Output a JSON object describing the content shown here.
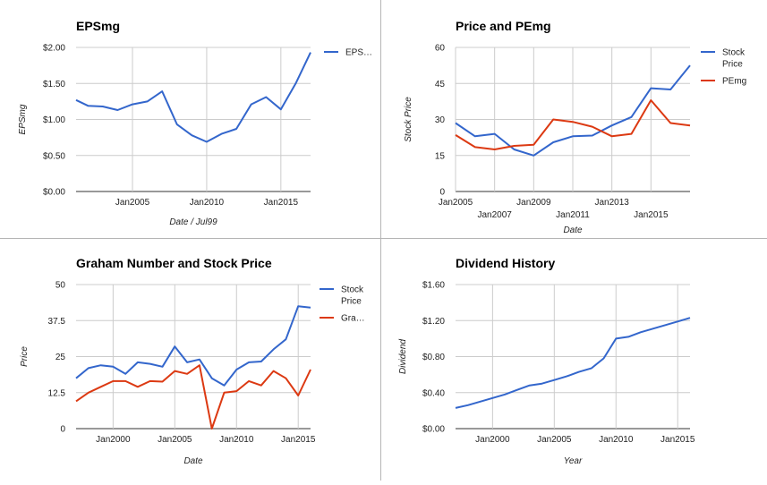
{
  "colors": {
    "blue": "#3366cc",
    "red": "#dc3912",
    "grid": "#cccccc",
    "axis": "#333333",
    "divider": "#b5b5b5"
  },
  "chart_data": [
    {
      "id": "eps",
      "type": "line",
      "title": "EPSmg",
      "xlabel": "Date / Jul99",
      "ylabel": "EPSmg",
      "ylim": [
        0,
        2.0
      ],
      "xlim": [
        2001.2,
        2017.0
      ],
      "grid": true,
      "legend_position": "right",
      "y_ticks": [
        {
          "v": 0,
          "label": "$0.00"
        },
        {
          "v": 0.5,
          "label": "$0.50"
        },
        {
          "v": 1.0,
          "label": "$1.00"
        },
        {
          "v": 1.5,
          "label": "$1.50"
        },
        {
          "v": 2.0,
          "label": "$2.00"
        }
      ],
      "x_ticks": [
        {
          "v": 2005,
          "label": "Jan2005",
          "row": 0
        },
        {
          "v": 2010,
          "label": "Jan2010",
          "row": 0
        },
        {
          "v": 2015,
          "label": "Jan2015",
          "row": 0
        }
      ],
      "series": [
        {
          "name": "EPS…",
          "color": "#3366cc",
          "x": [
            2001.2,
            2002.0,
            2003.0,
            2004.0,
            2005.0,
            2006.0,
            2007.0,
            2008.0,
            2009.0,
            2010.0,
            2011.0,
            2012.0,
            2013.0,
            2014.0,
            2015.0,
            2016.0,
            2017.0
          ],
          "values": [
            1.27,
            1.19,
            1.18,
            1.13,
            1.21,
            1.25,
            1.39,
            0.93,
            0.78,
            0.69,
            0.8,
            0.87,
            1.21,
            1.31,
            1.14,
            1.5,
            1.93
          ]
        }
      ]
    },
    {
      "id": "pe",
      "type": "line",
      "title": "Price and PEmg",
      "xlabel": "Date",
      "ylabel": "Stock Price",
      "ylim": [
        0,
        60
      ],
      "xlim": [
        2005.0,
        2017.0
      ],
      "grid": true,
      "legend_position": "right",
      "y_ticks": [
        {
          "v": 0,
          "label": "0"
        },
        {
          "v": 15,
          "label": "15"
        },
        {
          "v": 30,
          "label": "30"
        },
        {
          "v": 45,
          "label": "45"
        },
        {
          "v": 60,
          "label": "60"
        }
      ],
      "x_ticks": [
        {
          "v": 2005,
          "label": "Jan2005",
          "row": 0
        },
        {
          "v": 2007,
          "label": "Jan2007",
          "row": 1
        },
        {
          "v": 2009,
          "label": "Jan2009",
          "row": 0
        },
        {
          "v": 2011,
          "label": "Jan2011",
          "row": 1
        },
        {
          "v": 2013,
          "label": "Jan2013",
          "row": 0
        },
        {
          "v": 2015,
          "label": "Jan2015",
          "row": 1
        }
      ],
      "series": [
        {
          "name": "Stock Price",
          "color": "#3366cc",
          "x": [
            2005.0,
            2006.0,
            2007.0,
            2008.0,
            2009.0,
            2010.0,
            2011.0,
            2012.0,
            2013.0,
            2014.0,
            2015.0,
            2016.0,
            2017.0
          ],
          "values": [
            28.5,
            23.0,
            24.0,
            17.5,
            15.0,
            20.5,
            23.0,
            23.3,
            27.5,
            31.0,
            43.0,
            42.5,
            52.5
          ]
        },
        {
          "name": "PEmg",
          "color": "#dc3912",
          "x": [
            2005.0,
            2006.0,
            2007.0,
            2008.0,
            2009.0,
            2010.0,
            2011.0,
            2012.0,
            2013.0,
            2014.0,
            2015.0,
            2016.0,
            2017.0
          ],
          "values": [
            23.5,
            18.5,
            17.5,
            19.0,
            19.5,
            30.0,
            29.0,
            27.0,
            23.0,
            24.0,
            38.0,
            28.5,
            27.5
          ]
        }
      ]
    },
    {
      "id": "graham",
      "type": "line",
      "title": "Graham Number and Stock Price",
      "xlabel": "Date",
      "ylabel": "Price",
      "ylim": [
        0,
        50
      ],
      "xlim": [
        1997.0,
        2016.0
      ],
      "grid": true,
      "legend_position": "right",
      "y_ticks": [
        {
          "v": 0,
          "label": "0"
        },
        {
          "v": 12.5,
          "label": "12.5"
        },
        {
          "v": 25,
          "label": "25"
        },
        {
          "v": 37.5,
          "label": "37.5"
        },
        {
          "v": 50,
          "label": "50"
        }
      ],
      "x_ticks": [
        {
          "v": 2000,
          "label": "Jan2000",
          "row": 0
        },
        {
          "v": 2005,
          "label": "Jan2005",
          "row": 0
        },
        {
          "v": 2010,
          "label": "Jan2010",
          "row": 0
        },
        {
          "v": 2015,
          "label": "Jan2015",
          "row": 0
        }
      ],
      "series": [
        {
          "name": "Stock Price",
          "color": "#3366cc",
          "x": [
            1997.0,
            1998.0,
            1999.0,
            2000.0,
            2001.0,
            2002.0,
            2003.0,
            2004.0,
            2005.0,
            2006.0,
            2007.0,
            2008.0,
            2009.0,
            2010.0,
            2011.0,
            2012.0,
            2013.0,
            2014.0,
            2015.0,
            2016.0
          ],
          "values": [
            17.5,
            21.0,
            22.0,
            21.5,
            19.0,
            23.0,
            22.5,
            21.5,
            28.5,
            23.0,
            24.0,
            17.5,
            15.0,
            20.5,
            23.0,
            23.3,
            27.5,
            31.0,
            42.5,
            42.0
          ]
        },
        {
          "name": "Gra…",
          "color": "#dc3912",
          "x": [
            1997.0,
            1998.0,
            1999.0,
            2000.0,
            2001.0,
            2002.0,
            2003.0,
            2004.0,
            2005.0,
            2006.0,
            2007.0,
            2008.0,
            2009.0,
            2010.0,
            2011.0,
            2012.0,
            2013.0,
            2014.0,
            2015.0,
            2016.0
          ],
          "values": [
            9.5,
            12.5,
            14.5,
            16.5,
            16.5,
            14.5,
            16.5,
            16.3,
            20.0,
            19.0,
            22.0,
            0.0,
            12.5,
            13.0,
            16.5,
            15.0,
            20.0,
            17.5,
            11.5,
            20.5
          ]
        }
      ]
    },
    {
      "id": "dividend",
      "type": "line",
      "title": "Dividend History",
      "xlabel": "Year",
      "ylabel": "Dividend",
      "ylim": [
        0,
        1.6
      ],
      "xlim": [
        1997.0,
        2016.0
      ],
      "grid": true,
      "legend_position": "none",
      "y_ticks": [
        {
          "v": 0,
          "label": "$0.00"
        },
        {
          "v": 0.4,
          "label": "$0.40"
        },
        {
          "v": 0.8,
          "label": "$0.80"
        },
        {
          "v": 1.2,
          "label": "$1.20"
        },
        {
          "v": 1.6,
          "label": "$1.60"
        }
      ],
      "x_ticks": [
        {
          "v": 2000,
          "label": "Jan2000",
          "row": 0
        },
        {
          "v": 2005,
          "label": "Jan2005",
          "row": 0
        },
        {
          "v": 2010,
          "label": "Jan2010",
          "row": 0
        },
        {
          "v": 2015,
          "label": "Jan2015",
          "row": 0
        }
      ],
      "series": [
        {
          "name": "",
          "color": "#3366cc",
          "x": [
            1997.0,
            1998.0,
            1999.0,
            2000.0,
            2001.0,
            2002.0,
            2003.0,
            2004.0,
            2005.0,
            2006.0,
            2007.0,
            2008.0,
            2009.0,
            2010.0,
            2011.0,
            2012.0,
            2013.0,
            2014.0,
            2015.0,
            2016.0
          ],
          "values": [
            0.23,
            0.26,
            0.3,
            0.34,
            0.38,
            0.43,
            0.48,
            0.5,
            0.54,
            0.58,
            0.63,
            0.67,
            0.78,
            1.0,
            1.02,
            1.07,
            1.11,
            1.15,
            1.19,
            1.23
          ]
        }
      ]
    }
  ]
}
